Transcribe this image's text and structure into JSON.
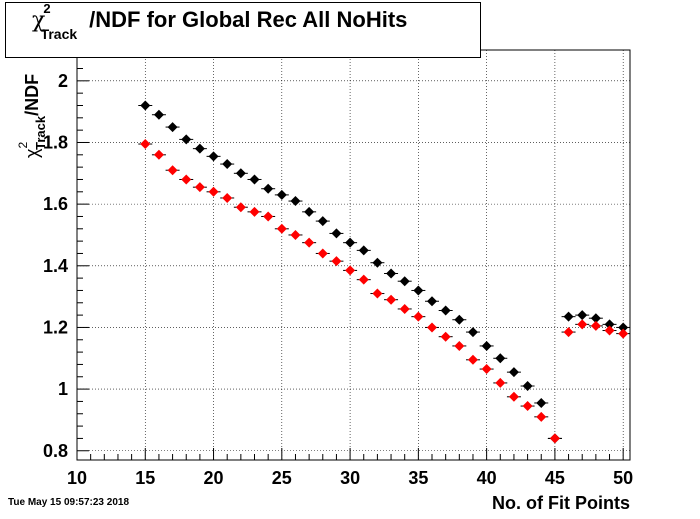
{
  "title": {
    "symbol": "χ",
    "superscript": "2",
    "subscript": "Track",
    "rest": "/NDF for Global Rec All NoHits"
  },
  "timestamp": "Tue May 15 09:57:23 2018",
  "chart_data": {
    "type": "scatter",
    "title": "χ²_Track/NDF for Global Rec All NoHits",
    "xlabel": "No. of Fit Points",
    "ylabel": "χ²_Track/NDF",
    "xlim": [
      10,
      50.5
    ],
    "ylim": [
      0.77,
      2.1
    ],
    "xticks": [
      10,
      15,
      20,
      25,
      30,
      35,
      40,
      45,
      50
    ],
    "yticks": [
      0.8,
      1,
      1.2,
      1.4,
      1.6,
      1.8,
      2
    ],
    "ytick_labels": [
      "0.8",
      "1",
      "1.2",
      "1.4",
      "1.6",
      "1.8",
      "2"
    ],
    "grid": true,
    "series": [
      {
        "color": "#000000",
        "x": [
          15,
          16,
          17,
          18,
          19,
          20,
          21,
          22,
          23,
          24,
          25,
          26,
          27,
          28,
          29,
          30,
          31,
          32,
          33,
          34,
          35,
          36,
          37,
          38,
          39,
          40,
          41,
          42,
          43,
          44,
          45,
          46,
          47,
          48,
          49,
          50
        ],
        "y": [
          1.92,
          1.89,
          1.85,
          1.81,
          1.78,
          1.755,
          1.73,
          1.7,
          1.68,
          1.65,
          1.63,
          1.61,
          1.575,
          1.545,
          1.505,
          1.475,
          1.45,
          1.41,
          1.375,
          1.35,
          1.32,
          1.285,
          1.255,
          1.225,
          1.185,
          1.14,
          1.1,
          1.055,
          1.01,
          0.955,
          0.84,
          1.235,
          1.24,
          1.23,
          1.21,
          1.2
        ]
      },
      {
        "color": "#ff0000",
        "x": [
          15,
          16,
          17,
          18,
          19,
          20,
          21,
          22,
          23,
          24,
          25,
          26,
          27,
          28,
          29,
          30,
          31,
          32,
          33,
          34,
          35,
          36,
          37,
          38,
          39,
          40,
          41,
          42,
          43,
          44,
          45,
          46,
          47,
          48,
          49,
          50
        ],
        "y": [
          1.795,
          1.76,
          1.71,
          1.68,
          1.655,
          1.64,
          1.62,
          1.59,
          1.575,
          1.56,
          1.52,
          1.5,
          1.475,
          1.44,
          1.415,
          1.385,
          1.355,
          1.31,
          1.29,
          1.26,
          1.235,
          1.2,
          1.17,
          1.14,
          1.095,
          1.065,
          1.02,
          0.975,
          0.945,
          0.91,
          0.84,
          1.185,
          1.21,
          1.205,
          1.19,
          1.18
        ]
      }
    ]
  }
}
